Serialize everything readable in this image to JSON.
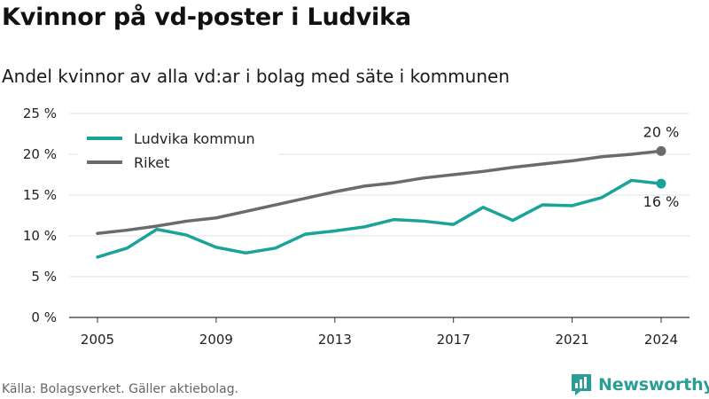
{
  "title": "Kvinnor på vd-poster i Ludvika",
  "subtitle": "Andel kvinnor av alla vd:ar i bolag med säte i kommunen",
  "source": "Källa: Bolagsverket. Gäller aktiebolag.",
  "brand": "Newsworthy",
  "colors": {
    "ludvika": "#1aa39a",
    "riket": "#6b6b6e",
    "grid": "#e3e3e3",
    "brand": "#2a9d94"
  },
  "chart_data": {
    "type": "line",
    "title": "Kvinnor på vd-poster i Ludvika",
    "subtitle": "Andel kvinnor av alla vd:ar i bolag med säte i kommunen",
    "xlabel": "",
    "ylabel": "",
    "x": [
      2005,
      2006,
      2007,
      2008,
      2009,
      2010,
      2011,
      2012,
      2013,
      2014,
      2015,
      2016,
      2017,
      2018,
      2019,
      2020,
      2021,
      2022,
      2023,
      2024
    ],
    "xticks": [
      "2005",
      "2009",
      "2013",
      "2017",
      "2021",
      "2024"
    ],
    "yticks": [
      "0 %",
      "5 %",
      "10 %",
      "15 %",
      "20 %",
      "25 %"
    ],
    "ylim": [
      0,
      25
    ],
    "grid": true,
    "legend_position": "top-left",
    "series": [
      {
        "name": "Ludvika kommun",
        "color": "#1aa39a",
        "values": [
          7.4,
          8.5,
          10.8,
          10.1,
          8.6,
          7.9,
          8.5,
          10.2,
          10.6,
          11.1,
          12.0,
          11.8,
          11.4,
          13.5,
          11.9,
          13.8,
          13.7,
          14.7,
          16.8,
          16.4
        ],
        "end_label": "16 %"
      },
      {
        "name": "Riket",
        "color": "#6b6b6e",
        "values": [
          10.3,
          10.7,
          11.2,
          11.8,
          12.2,
          13.0,
          13.8,
          14.6,
          15.4,
          16.1,
          16.5,
          17.1,
          17.5,
          17.9,
          18.4,
          18.8,
          19.2,
          19.7,
          20.0,
          20.4
        ],
        "end_label": "20 %"
      }
    ]
  }
}
